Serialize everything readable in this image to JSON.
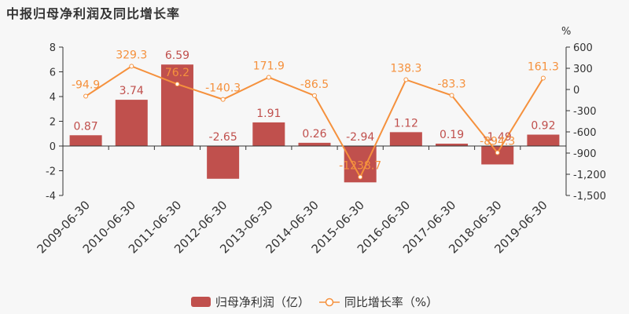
{
  "title": "中报归母净利润及同比增长率",
  "colors": {
    "bar": "#c0504d",
    "line": "#f5913d",
    "axis": "#333333",
    "background": "#f7f7f7"
  },
  "legend": {
    "bar_label": "归母净利润（亿）",
    "line_label": "同比增长率（%）"
  },
  "right_axis_unit": "%",
  "chart_data": {
    "type": "bar+line",
    "title": "中报归母净利润及同比增长率",
    "categories": [
      "2009-06-30",
      "2010-06-30",
      "2011-06-30",
      "2012-06-30",
      "2013-06-30",
      "2014-06-30",
      "2015-06-30",
      "2016-06-30",
      "2017-06-30",
      "2018-06-30",
      "2019-06-30"
    ],
    "series": [
      {
        "name": "归母净利润（亿）",
        "type": "bar",
        "axis": "left",
        "values": [
          0.87,
          3.74,
          6.59,
          -2.65,
          1.91,
          0.26,
          -2.94,
          1.12,
          0.19,
          -1.49,
          0.92
        ]
      },
      {
        "name": "同比增长率（%）",
        "type": "line",
        "axis": "right",
        "values": [
          -94.9,
          329.3,
          76.2,
          -140.3,
          171.9,
          -86.5,
          -1238.7,
          138.3,
          -83.3,
          -894.3,
          161.3
        ]
      }
    ],
    "left_axis": {
      "ylim": [
        -4,
        8
      ],
      "ticks": [
        8,
        6,
        4,
        2,
        0,
        -2,
        -4
      ]
    },
    "right_axis": {
      "ylim": [
        -1500,
        600
      ],
      "ticks": [
        "600",
        "300",
        "0",
        "-300",
        "-600",
        "-900",
        "-1,200",
        "-1,500"
      ],
      "unit": "%"
    },
    "legend_position": "bottom",
    "grid": false
  }
}
